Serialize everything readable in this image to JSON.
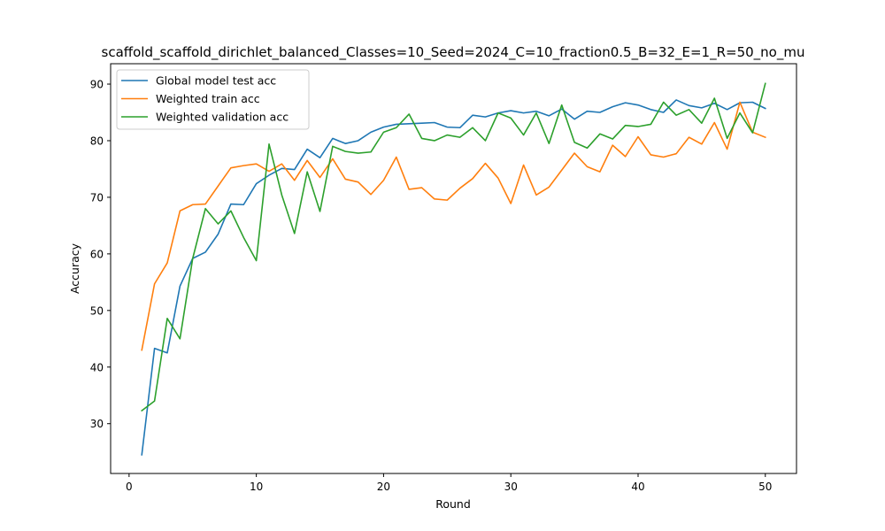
{
  "chart_data": {
    "type": "line",
    "title": "scaffold_scaffold_dirichlet_balanced_Classes=10_Seed=2024_C=10_fraction0.5_B=32_E=1_R=50_no_mu",
    "xlabel": "Round",
    "ylabel": "Accuracy",
    "xlim": [
      -1.45,
      52.45
    ],
    "ylim": [
      21.2,
      93.6
    ],
    "xticks": [
      0,
      10,
      20,
      30,
      40,
      50
    ],
    "yticks": [
      30,
      40,
      50,
      60,
      70,
      80,
      90
    ],
    "grid": false,
    "legend_position": "upper-left",
    "x": [
      1,
      2,
      3,
      4,
      5,
      6,
      7,
      8,
      9,
      10,
      11,
      12,
      13,
      14,
      15,
      16,
      17,
      18,
      19,
      20,
      21,
      22,
      23,
      24,
      25,
      26,
      27,
      28,
      29,
      30,
      31,
      32,
      33,
      34,
      35,
      36,
      37,
      38,
      39,
      40,
      41,
      42,
      43,
      44,
      45,
      46,
      47,
      48,
      49,
      50
    ],
    "series": [
      {
        "name": "Global model test acc",
        "color": "#1f77b4",
        "values": [
          24.5,
          43.3,
          42.5,
          54.3,
          59.2,
          60.3,
          63.5,
          68.8,
          68.7,
          72.4,
          73.9,
          75.1,
          74.9,
          78.5,
          77.0,
          80.4,
          79.5,
          80.0,
          81.5,
          82.4,
          82.9,
          83.0,
          83.1,
          83.2,
          82.4,
          82.3,
          84.5,
          84.2,
          84.9,
          85.3,
          84.9,
          85.2,
          84.4,
          85.6,
          83.8,
          85.2,
          85.0,
          86.0,
          86.7,
          86.3,
          85.5,
          85.0,
          87.2,
          86.2,
          85.8,
          86.6,
          85.5,
          86.7,
          86.8,
          85.7
        ]
      },
      {
        "name": "Weighted train acc",
        "color": "#ff7f0e",
        "values": [
          43.0,
          54.7,
          58.4,
          67.6,
          68.7,
          68.8,
          72.0,
          75.2,
          75.6,
          75.9,
          74.6,
          75.9,
          73.0,
          76.5,
          73.5,
          76.8,
          73.2,
          72.7,
          70.5,
          73.0,
          77.1,
          71.4,
          71.7,
          69.7,
          69.5,
          71.6,
          73.3,
          76.0,
          73.4,
          68.9,
          75.7,
          70.4,
          71.8,
          74.8,
          77.8,
          75.4,
          74.5,
          79.2,
          77.2,
          80.7,
          77.5,
          77.1,
          77.7,
          80.6,
          79.4,
          83.2,
          78.5,
          86.8,
          81.5,
          80.6
        ]
      },
      {
        "name": "Weighted validation acc",
        "color": "#2ca02c",
        "values": [
          32.3,
          34.0,
          48.6,
          45.0,
          59.2,
          68.0,
          65.3,
          67.6,
          62.9,
          58.8,
          79.4,
          70.4,
          63.6,
          74.5,
          67.5,
          79.0,
          78.1,
          77.8,
          78.0,
          81.5,
          82.3,
          84.7,
          80.4,
          80.0,
          81.0,
          80.6,
          82.3,
          80.0,
          84.9,
          84.0,
          81.0,
          84.9,
          79.5,
          86.3,
          79.7,
          78.7,
          81.2,
          80.3,
          82.7,
          82.5,
          82.9,
          86.8,
          84.5,
          85.5,
          83.1,
          87.5,
          80.4,
          84.9,
          81.4,
          90.1
        ]
      }
    ]
  }
}
